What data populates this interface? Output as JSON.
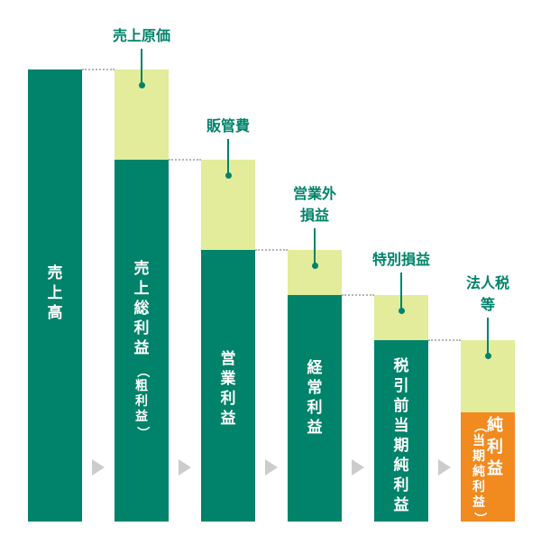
{
  "colors": {
    "bar_dark": "#00836a",
    "bar_light": "#e2ec9a",
    "bar_net": "#f18a1f",
    "label": "#00836a",
    "text_on_bar": "#ffffff",
    "arrow": "#cccccc",
    "connector": "#b5b5b5"
  },
  "bars": [
    {
      "key": "sales",
      "label": "売上高"
    },
    {
      "key": "gross_profit",
      "label": "売上総利益",
      "sub": "（粗利益）"
    },
    {
      "key": "operating_profit",
      "label": "営業利益"
    },
    {
      "key": "ordinary_profit",
      "label": "経常利益"
    },
    {
      "key": "pretax_profit",
      "label": "税引前当期純利益"
    },
    {
      "key": "net_profit",
      "label": "純利益",
      "sub": "（当期純利益）"
    }
  ],
  "deductions": [
    {
      "key": "cost_of_sales",
      "label": [
        "売上原価"
      ]
    },
    {
      "key": "sga",
      "label": [
        "販管費"
      ]
    },
    {
      "key": "non_operating",
      "label": [
        "営業外",
        "損益"
      ]
    },
    {
      "key": "extraordinary",
      "label": [
        "特別損益"
      ]
    },
    {
      "key": "taxes",
      "label": [
        "法人税",
        "等"
      ]
    }
  ]
}
